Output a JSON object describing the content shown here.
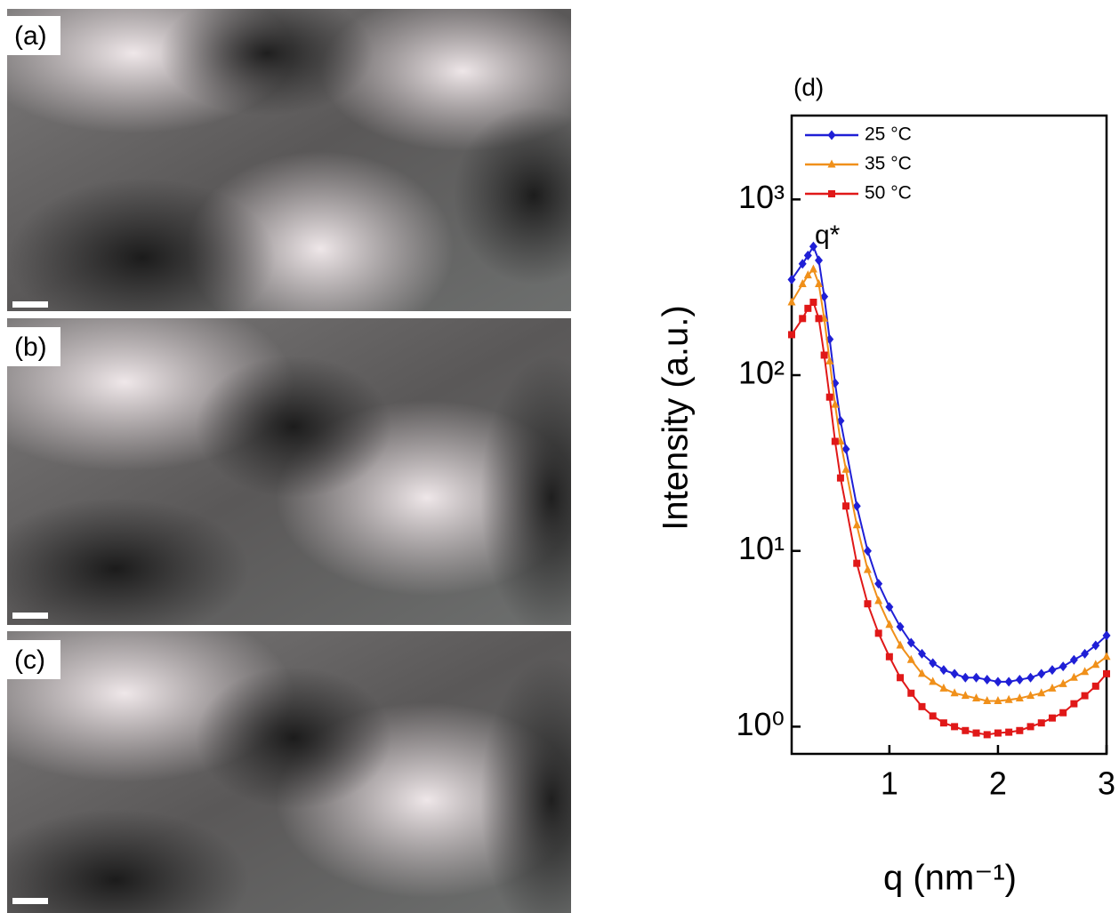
{
  "panels": [
    {
      "label": "(a)"
    },
    {
      "label": "(b)"
    },
    {
      "label": "(c)"
    }
  ],
  "chart_data": {
    "type": "line",
    "title": "(d)",
    "annotation": "q*",
    "xlabel": "q (nm⁻¹)",
    "ylabel": "Intensity (a.u.)",
    "x": [
      0.1,
      0.2,
      0.25,
      0.3,
      0.35,
      0.4,
      0.45,
      0.5,
      0.55,
      0.6,
      0.7,
      0.8,
      0.9,
      1.0,
      1.1,
      1.2,
      1.3,
      1.4,
      1.5,
      1.6,
      1.7,
      1.8,
      1.9,
      2.0,
      2.1,
      2.2,
      2.3,
      2.4,
      2.5,
      2.6,
      2.7,
      2.8,
      2.9,
      3.0
    ],
    "series": [
      {
        "name": "25 °C",
        "color": "#1f1fd6",
        "marker": "diamond",
        "values": [
          350,
          430,
          480,
          540,
          450,
          280,
          160,
          90,
          55,
          38,
          18,
          10,
          6.5,
          4.8,
          3.7,
          3.0,
          2.6,
          2.3,
          2.1,
          2.0,
          1.9,
          1.9,
          1.85,
          1.8,
          1.8,
          1.85,
          1.9,
          2.0,
          2.1,
          2.2,
          2.4,
          2.6,
          2.9,
          3.3
        ]
      },
      {
        "name": "35 °C",
        "color": "#f0901a",
        "marker": "triangle",
        "values": [
          260,
          330,
          370,
          400,
          330,
          210,
          120,
          68,
          42,
          29,
          14,
          7.8,
          5.2,
          3.8,
          2.9,
          2.4,
          2.0,
          1.8,
          1.65,
          1.55,
          1.5,
          1.45,
          1.4,
          1.4,
          1.42,
          1.45,
          1.5,
          1.55,
          1.65,
          1.75,
          1.9,
          2.05,
          2.25,
          2.5
        ]
      },
      {
        "name": "50 °C",
        "color": "#e01818",
        "marker": "square",
        "values": [
          170,
          210,
          240,
          260,
          210,
          130,
          75,
          42,
          26,
          18,
          8.5,
          5.0,
          3.4,
          2.5,
          1.9,
          1.55,
          1.3,
          1.15,
          1.05,
          1.0,
          0.95,
          0.92,
          0.9,
          0.92,
          0.93,
          0.95,
          1.0,
          1.05,
          1.12,
          1.2,
          1.35,
          1.5,
          1.7,
          2.0
        ]
      }
    ],
    "xlim": [
      0.1,
      3
    ],
    "xticks": [
      1,
      2,
      3
    ],
    "ylim": [
      0.7,
      3000
    ],
    "ylog": true,
    "yticks": [
      {
        "value": 1,
        "label": "10⁰"
      },
      {
        "value": 10,
        "label": "10¹"
      },
      {
        "value": 100,
        "label": "10²"
      },
      {
        "value": 1000,
        "label": "10³"
      }
    ],
    "legend": "top-left"
  }
}
